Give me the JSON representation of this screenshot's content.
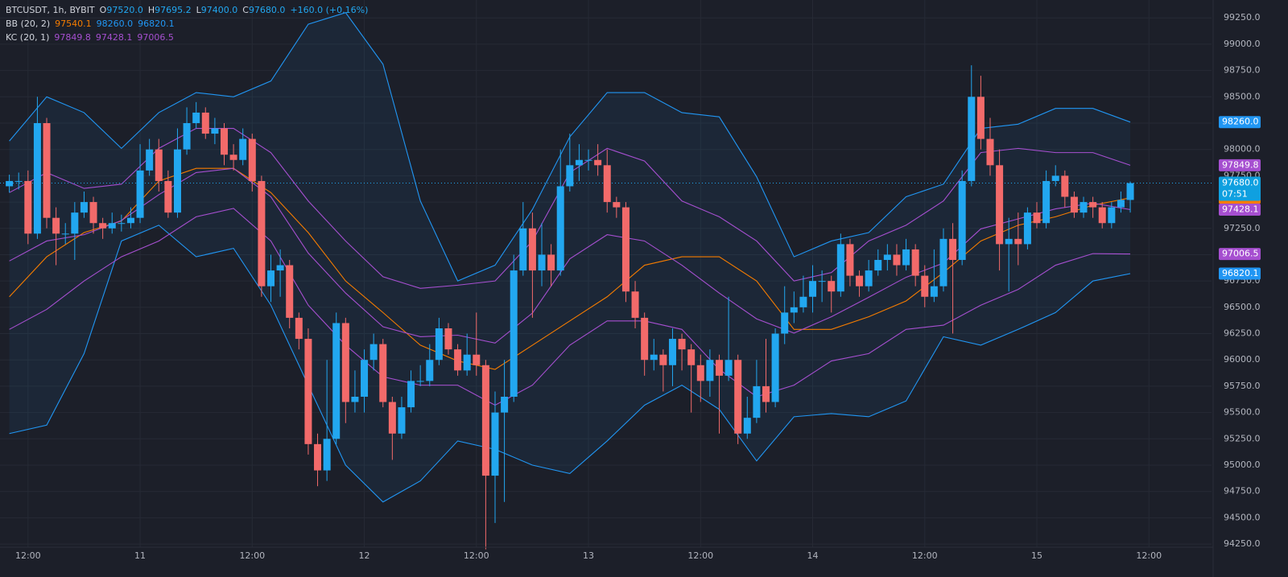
{
  "legend": {
    "symbol": "BTCUSDT, 1h, BYBIT",
    "ohlc": [
      {
        "label": "O",
        "value": "97520.0"
      },
      {
        "label": "H",
        "value": "97695.2"
      },
      {
        "label": "L",
        "value": "97400.0"
      },
      {
        "label": "C",
        "value": "97680.0"
      }
    ],
    "change": "+160.0 (+0.16%)",
    "indicators": [
      {
        "name": "BB (20, 2)",
        "values": [
          "97540.1",
          "98260.0",
          "96820.1"
        ],
        "colors": [
          "#f57c00",
          "#2196f3",
          "#2196f3"
        ]
      },
      {
        "name": "KC (20, 1)",
        "values": [
          "97849.8",
          "97428.1",
          "97006.5"
        ],
        "colors": [
          "#a64fd0",
          "#a64fd0",
          "#a64fd0"
        ]
      }
    ],
    "value_color": "#22a7f0"
  },
  "countdown": "07:51",
  "chart_data": {
    "type": "candlestick",
    "up_color": "#22a7f0",
    "down_color": "#f26a6a",
    "grid": true,
    "xlim": [
      9,
      138.7
    ],
    "xticks": [
      {
        "value": 12,
        "label": "12:00"
      },
      {
        "value": 24,
        "label": "11"
      },
      {
        "value": 36,
        "label": "12:00"
      },
      {
        "value": 48,
        "label": "12"
      },
      {
        "value": 60,
        "label": "12:00"
      },
      {
        "value": 72,
        "label": "13"
      },
      {
        "value": 84,
        "label": "12:00"
      },
      {
        "value": 96,
        "label": "14"
      },
      {
        "value": 108,
        "label": "12:00"
      },
      {
        "value": 120,
        "label": "15"
      },
      {
        "value": 132,
        "label": "12:00"
      }
    ],
    "ylim": [
      94220,
      99420
    ],
    "yticks": [
      {
        "value": 94250,
        "label": "94250.0"
      },
      {
        "value": 94500,
        "label": "94500.0"
      },
      {
        "value": 94750,
        "label": "94750.0"
      },
      {
        "value": 95000,
        "label": "95000.0"
      },
      {
        "value": 95250,
        "label": "95250.0"
      },
      {
        "value": 95500,
        "label": "95500.0"
      },
      {
        "value": 95750,
        "label": "95750.0"
      },
      {
        "value": 96000,
        "label": "96000.0"
      },
      {
        "value": 96250,
        "label": "96250.0"
      },
      {
        "value": 96500,
        "label": "96500.0"
      },
      {
        "value": 96750,
        "label": "96750.0"
      },
      {
        "value": 97000,
        "label": "97000.0"
      },
      {
        "value": 97250,
        "label": "97250.0"
      },
      {
        "value": 97500,
        "label": "97500.0"
      },
      {
        "value": 97750,
        "label": "97750.0"
      },
      {
        "value": 98000,
        "label": "98000.0"
      },
      {
        "value": 98250,
        "label": "98250.0"
      },
      {
        "value": 98500,
        "label": "98500.0"
      },
      {
        "value": 98750,
        "label": "98750.0"
      },
      {
        "value": 99000,
        "label": "99000.0"
      },
      {
        "value": 99250,
        "label": "99250.0"
      }
    ],
    "x": [
      10,
      11,
      12,
      13,
      14,
      15,
      16,
      17,
      18,
      19,
      20,
      21,
      22,
      23,
      24,
      25,
      26,
      27,
      28,
      29,
      30,
      31,
      32,
      33,
      34,
      35,
      36,
      37,
      38,
      39,
      40,
      41,
      42,
      43,
      44,
      45,
      46,
      47,
      48,
      49,
      50,
      51,
      52,
      53,
      54,
      55,
      56,
      57,
      58,
      59,
      60,
      61,
      62,
      63,
      64,
      65,
      66,
      67,
      68,
      69,
      70,
      71,
      72,
      73,
      74,
      75,
      76,
      77,
      78,
      79,
      80,
      81,
      82,
      83,
      84,
      85,
      86,
      87,
      88,
      89,
      90,
      91,
      92,
      93,
      94,
      95,
      96,
      97,
      98,
      99,
      100,
      101,
      102,
      103,
      104,
      105,
      106,
      107,
      108,
      109,
      110,
      111,
      112,
      113,
      114,
      115,
      116,
      117,
      118,
      119,
      120,
      121,
      122,
      123,
      124,
      125,
      126,
      127,
      128,
      129,
      130
    ],
    "open": [
      97650,
      97700,
      97700,
      97200,
      98250,
      97350,
      97200,
      97200,
      97400,
      97500,
      97300,
      97250,
      97300,
      97300,
      97350,
      97800,
      98000,
      97700,
      97400,
      98000,
      98250,
      98350,
      98150,
      98200,
      97950,
      97900,
      98100,
      97700,
      96700,
      96850,
      96900,
      96400,
      96200,
      95200,
      94950,
      95250,
      96350,
      95600,
      95650,
      96000,
      96150,
      95600,
      95300,
      95550,
      95800,
      95800,
      96000,
      96300,
      96100,
      95900,
      96050,
      95950,
      94900,
      95500,
      95650,
      96850,
      97250,
      96850,
      97000,
      96850,
      97650,
      97850,
      97900,
      97900,
      97850,
      97500,
      97450,
      96650,
      96400,
      96000,
      96050,
      95950,
      96200,
      96100,
      95950,
      95800,
      96000,
      95850,
      96000,
      95300,
      95450,
      95750,
      95600,
      96250,
      96450,
      96500,
      96600,
      96750,
      96750,
      96650,
      97100,
      96800,
      96700,
      96850,
      96950,
      97000,
      96900,
      97050,
      96800,
      96600,
      96700,
      97150,
      96950,
      97700,
      98500,
      98100,
      97850,
      97100,
      97150,
      97100,
      97400,
      97300,
      97700,
      97750,
      97550,
      97400,
      97500,
      97450,
      97300,
      97450,
      97520
    ],
    "high": [
      97760,
      97780,
      97800,
      98500,
      98300,
      97450,
      97300,
      97500,
      97600,
      97550,
      97350,
      97400,
      97380,
      97450,
      98050,
      98100,
      98100,
      97800,
      98200,
      98400,
      98450,
      98400,
      98300,
      98250,
      98050,
      98200,
      98150,
      97750,
      97000,
      97050,
      96950,
      96450,
      96300,
      95300,
      96000,
      96450,
      96400,
      95900,
      96100,
      96250,
      96200,
      95650,
      95650,
      95900,
      95950,
      96150,
      96400,
      96350,
      96150,
      96250,
      96450,
      96000,
      95700,
      96000,
      97000,
      97500,
      97400,
      97300,
      97100,
      98000,
      98150,
      98050,
      98000,
      98050,
      98000,
      97550,
      97500,
      96750,
      96450,
      96200,
      96100,
      96300,
      96250,
      96150,
      96050,
      96100,
      96050,
      96600,
      96050,
      95650,
      96000,
      96200,
      96300,
      96700,
      96650,
      96800,
      96900,
      96850,
      96800,
      97200,
      97150,
      96850,
      96950,
      97050,
      97100,
      97100,
      97150,
      97100,
      96900,
      97050,
      97250,
      97300,
      97800,
      98800,
      98700,
      98300,
      98000,
      97350,
      97400,
      97450,
      97500,
      97800,
      97850,
      97800,
      97600,
      97550,
      97550,
      97500,
      97500,
      97600,
      97695.2
    ],
    "low": [
      97590,
      97620,
      97100,
      97150,
      97250,
      96900,
      97100,
      96950,
      97350,
      97200,
      97150,
      97200,
      97220,
      97250,
      97300,
      97750,
      97600,
      97350,
      97350,
      97950,
      98200,
      98100,
      98050,
      97850,
      97800,
      97850,
      97600,
      96600,
      96550,
      96600,
      96300,
      96100,
      95100,
      94800,
      94850,
      95200,
      95400,
      95500,
      95500,
      95900,
      95550,
      95050,
      95250,
      95500,
      95750,
      95750,
      95950,
      96050,
      95850,
      95850,
      95850,
      94200,
      94450,
      94650,
      95600,
      96800,
      96400,
      96700,
      96700,
      96800,
      97600,
      97700,
      97800,
      97750,
      97400,
      97350,
      96550,
      96300,
      95850,
      95900,
      95700,
      95750,
      95900,
      95500,
      95600,
      95650,
      95300,
      95800,
      95200,
      95250,
      95400,
      95500,
      95550,
      96150,
      96350,
      96450,
      96450,
      96550,
      96450,
      96600,
      96700,
      96600,
      96650,
      96800,
      96850,
      96800,
      96850,
      96700,
      96500,
      96550,
      96650,
      96250,
      96900,
      97650,
      98000,
      97750,
      96850,
      96650,
      96900,
      97050,
      97250,
      97250,
      97650,
      97450,
      97350,
      97350,
      97350,
      97250,
      97250,
      97400,
      97400
    ],
    "close": [
      97700,
      97700,
      97200,
      98250,
      97350,
      97200,
      97200,
      97400,
      97500,
      97300,
      97250,
      97300,
      97300,
      97350,
      97800,
      98000,
      97700,
      97400,
      98000,
      98250,
      98350,
      98150,
      98200,
      97950,
      97900,
      98100,
      97700,
      96700,
      96850,
      96900,
      96400,
      96200,
      95200,
      94950,
      95250,
      96350,
      95600,
      95650,
      96000,
      96150,
      95600,
      95300,
      95550,
      95800,
      95800,
      96000,
      96300,
      96100,
      95900,
      96050,
      95950,
      94900,
      95500,
      95650,
      96850,
      97250,
      96850,
      97000,
      96850,
      97650,
      97850,
      97900,
      97900,
      97850,
      97500,
      97450,
      96650,
      96400,
      96000,
      96050,
      95950,
      96200,
      96100,
      95950,
      95800,
      96000,
      95850,
      96000,
      95300,
      95450,
      95750,
      95600,
      96250,
      96450,
      96500,
      96600,
      96750,
      96750,
      96650,
      97100,
      96800,
      96700,
      96850,
      96950,
      97000,
      96900,
      97050,
      96800,
      96600,
      96700,
      97150,
      96950,
      97700,
      98500,
      98100,
      97850,
      97100,
      97150,
      97100,
      97400,
      97300,
      97700,
      97750,
      97550,
      97400,
      97500,
      97450,
      97300,
      97450,
      97520,
      97680
    ],
    "band_x": [
      10,
      14,
      18,
      22,
      26,
      30,
      34,
      38,
      42,
      46,
      50,
      54,
      58,
      62,
      66,
      70,
      74,
      78,
      82,
      86,
      90,
      94,
      98,
      102,
      106,
      110,
      114,
      118,
      122,
      126,
      130
    ],
    "bands": [
      {
        "color": "#2196f3",
        "values": [
          98080,
          98500,
          98350,
          98010,
          98350,
          98540,
          98500,
          98650,
          99190,
          99300,
          98810,
          97510,
          96750,
          96900,
          97430,
          98120,
          98540,
          98540,
          98350,
          98310,
          97740,
          96980,
          97130,
          97210,
          97550,
          97670,
          98200,
          98240,
          98390,
          98390,
          98260
        ]
      },
      {
        "color": "#f57c00",
        "values": [
          96600,
          96980,
          97210,
          97320,
          97700,
          97820,
          97820,
          97590,
          97210,
          96750,
          96450,
          96140,
          95990,
          95910,
          96140,
          96370,
          96600,
          96900,
          96980,
          96980,
          96750,
          96290,
          96290,
          96410,
          96560,
          96830,
          97130,
          97280,
          97360,
          97470,
          97540.1
        ]
      },
      {
        "color": "#2196f3",
        "values": [
          95300,
          95380,
          96060,
          97130,
          97280,
          96980,
          97060,
          96520,
          95760,
          95000,
          94650,
          94850,
          95230,
          95150,
          95000,
          94920,
          95230,
          95570,
          95760,
          95530,
          95040,
          95460,
          95490,
          95460,
          95610,
          96220,
          96140,
          96290,
          96450,
          96750,
          96820.1
        ]
      },
      {
        "color": "#a64fd0",
        "values": [
          97590,
          97780,
          97630,
          97670,
          98010,
          98200,
          98200,
          97970,
          97510,
          97130,
          96790,
          96680,
          96710,
          96750,
          97130,
          97780,
          98010,
          97890,
          97510,
          97360,
          97130,
          96750,
          96830,
          97130,
          97280,
          97510,
          97970,
          98010,
          97970,
          97970,
          97849.8
        ]
      },
      {
        "color": "#a64fd0",
        "values": [
          96940,
          97130,
          97190,
          97325,
          97570,
          97780,
          97820,
          97550,
          97015,
          96635,
          96315,
          96220,
          96235,
          96160,
          96445,
          96960,
          97190,
          97130,
          96900,
          96635,
          96390,
          96255,
          96410,
          96595,
          96785,
          96920,
          97245,
          97340,
          97435,
          97490,
          97428.1
        ]
      },
      {
        "color": "#a64fd0",
        "values": [
          96290,
          96480,
          96750,
          96980,
          97130,
          97360,
          97440,
          97130,
          96520,
          96140,
          95840,
          95760,
          95760,
          95570,
          95760,
          96140,
          96370,
          96370,
          96290,
          95910,
          95650,
          95760,
          95990,
          96060,
          96290,
          96330,
          96520,
          96670,
          96900,
          97010,
          97006.5
        ]
      }
    ]
  }
}
